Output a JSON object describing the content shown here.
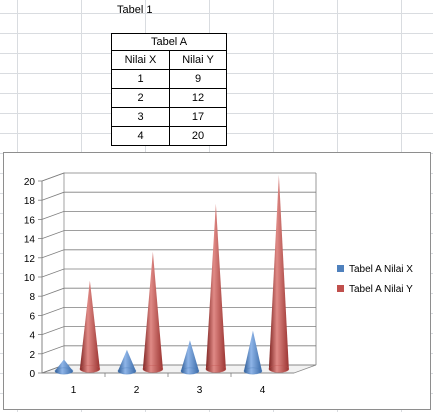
{
  "sheet": {
    "title": "Tabel 1"
  },
  "table": {
    "caption": "Tabel A",
    "headers": [
      "Nilai X",
      "Nilai Y"
    ],
    "rows": [
      [
        "1",
        "9"
      ],
      [
        "2",
        "12"
      ],
      [
        "3",
        "17"
      ],
      [
        "4",
        "20"
      ]
    ]
  },
  "colors": {
    "series_x": "#4f81bd",
    "series_y": "#c0504d"
  },
  "chart_data": {
    "type": "bar",
    "style": "3d-cone",
    "categories": [
      "1",
      "2",
      "3",
      "4"
    ],
    "series": [
      {
        "name": "Tabel A Nilai X",
        "values": [
          1,
          2,
          3,
          4
        ]
      },
      {
        "name": "Tabel A Nilai Y",
        "values": [
          9,
          12,
          17,
          20
        ]
      }
    ],
    "title": "",
    "xlabel": "",
    "ylabel": "",
    "ylim": [
      0,
      20
    ],
    "yticks": [
      0,
      2,
      4,
      6,
      8,
      10,
      12,
      14,
      16,
      18,
      20
    ],
    "grid": true,
    "legend": "right"
  }
}
